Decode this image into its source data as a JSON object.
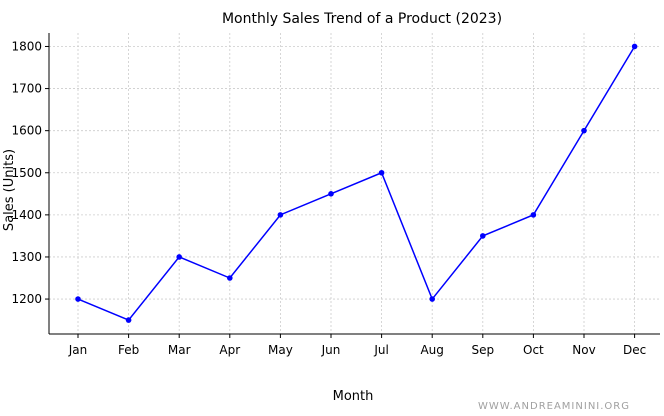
{
  "chart_data": {
    "type": "line",
    "title": "Monthly Sales Trend of a Product (2023)",
    "xlabel": "Month",
    "ylabel": "Sales (Units)",
    "categories": [
      "Jan",
      "Feb",
      "Mar",
      "Apr",
      "May",
      "Jun",
      "Jul",
      "Aug",
      "Sep",
      "Oct",
      "Nov",
      "Dec"
    ],
    "series": [
      {
        "values": [
          1200,
          1150,
          1300,
          1250,
          1400,
          1450,
          1500,
          1200,
          1350,
          1400,
          1600,
          1800
        ]
      }
    ],
    "yticks": [
      1200,
      1300,
      1400,
      1500,
      1600,
      1700,
      1800
    ],
    "ylim": [
      1117,
      1832
    ],
    "grid": true,
    "legend": "none",
    "colors": {
      "line": "#0000ff",
      "marker": "#0000ff"
    }
  },
  "watermark": "WWW.ANDREAMININI.ORG"
}
